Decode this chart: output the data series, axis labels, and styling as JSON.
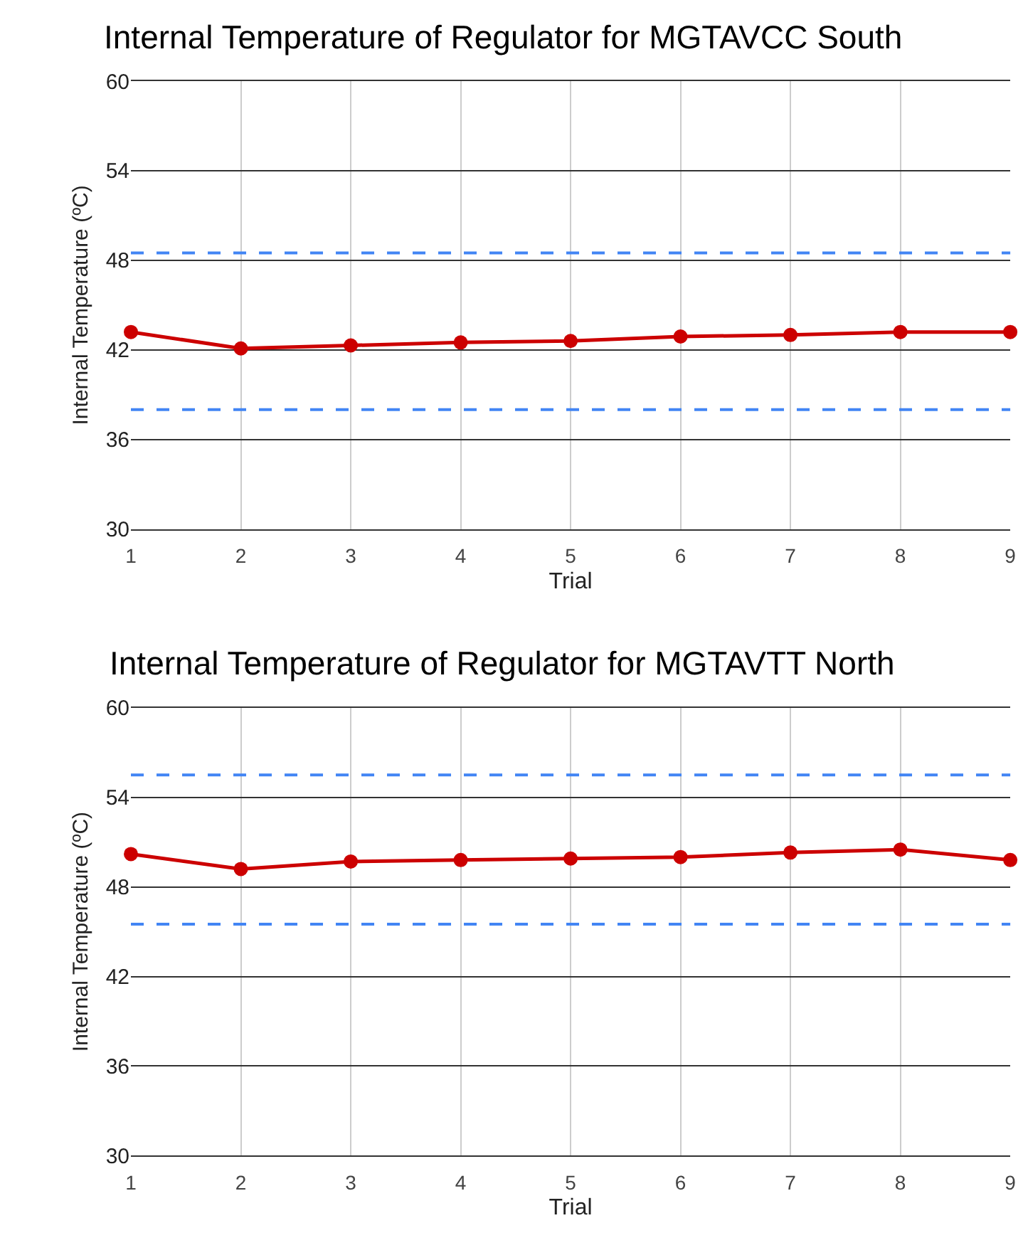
{
  "chart_data": [
    {
      "type": "line",
      "title": "Internal Temperature of Regulator for MGTAVCC South",
      "xlabel": "Trial",
      "ylabel": "Internal Temperature (ºC)",
      "x": [
        1,
        2,
        3,
        4,
        5,
        6,
        7,
        8,
        9
      ],
      "series": [
        {
          "color": "#cc0000",
          "values": [
            43.2,
            42.1,
            42.3,
            42.5,
            42.6,
            42.9,
            43.0,
            43.2,
            43.2
          ]
        }
      ],
      "xlim": [
        1,
        9
      ],
      "xticks": [
        1,
        2,
        3,
        4,
        5,
        6,
        7,
        8,
        9
      ],
      "ylim": [
        30,
        60
      ],
      "yticks": [
        30,
        36,
        42,
        48,
        54,
        60
      ],
      "ref_lines": [
        {
          "axis": "y",
          "value": 48.5,
          "color": "#4285f4",
          "line_style": "dashed"
        },
        {
          "axis": "y",
          "value": 38,
          "color": "#4285f4",
          "line_style": "dashed"
        }
      ],
      "grid": true,
      "marker": "circle",
      "line_style": "solid"
    },
    {
      "type": "line",
      "title": "Internal Temperature of Regulator for MGTAVTT North",
      "xlabel": "Trial",
      "ylabel": "Internal Temperature (ºC)",
      "x": [
        1,
        2,
        3,
        4,
        5,
        6,
        7,
        8,
        9
      ],
      "series": [
        {
          "color": "#cc0000",
          "values": [
            50.2,
            49.2,
            49.7,
            49.8,
            49.9,
            50.0,
            50.3,
            50.5,
            49.8
          ]
        }
      ],
      "xlim": [
        1,
        9
      ],
      "xticks": [
        1,
        2,
        3,
        4,
        5,
        6,
        7,
        8,
        9
      ],
      "ylim": [
        30,
        60
      ],
      "yticks": [
        30,
        36,
        42,
        48,
        54,
        60
      ],
      "ref_lines": [
        {
          "axis": "y",
          "value": 55.5,
          "color": "#4285f4",
          "line_style": "dashed"
        },
        {
          "axis": "y",
          "value": 45.5,
          "color": "#4285f4",
          "line_style": "dashed"
        }
      ],
      "grid": true,
      "marker": "circle",
      "line_style": "solid"
    }
  ]
}
